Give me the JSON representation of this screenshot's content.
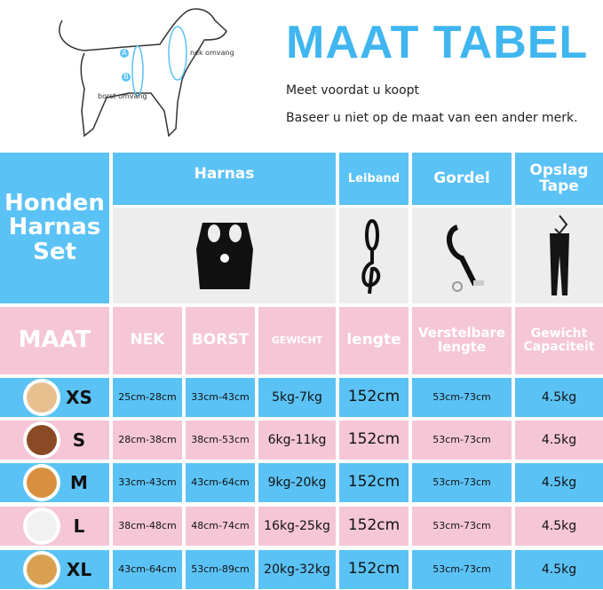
{
  "header": {
    "title": "MAAT TABEL",
    "line1": "Meet voordat u koopt",
    "line2": "Baseer u niet op de maat van een ander merk."
  },
  "diagram": {
    "a_marker": "A",
    "a_label": "nek omvang",
    "b_marker": "B",
    "b_label": "borst omvang"
  },
  "table": {
    "corner": "Honden Harnas Set",
    "products": [
      "Harnas",
      "Leiband",
      "Gordel",
      "Opslag Tape"
    ],
    "columns": [
      "MAAT",
      "NEK",
      "BORST",
      "GEWICHT",
      "lengte",
      "Verstelbare lengte",
      "Gewicht Capaciteit"
    ],
    "rows": [
      {
        "size": "XS",
        "nek": "25cm-28cm",
        "borst": "33cm-43cm",
        "gewicht": "5kg-7kg",
        "lengte": "152cm",
        "verstelbaar": "53cm-73cm",
        "capaciteit": "4.5kg",
        "dog_color": "#e8c090"
      },
      {
        "size": "S",
        "nek": "28cm-38cm",
        "borst": "38cm-53cm",
        "gewicht": "6kg-11kg",
        "lengte": "152cm",
        "verstelbaar": "53cm-73cm",
        "capaciteit": "4.5kg",
        "dog_color": "#8a4a26"
      },
      {
        "size": "M",
        "nek": "33cm-43cm",
        "borst": "43cm-64cm",
        "gewicht": "9kg-20kg",
        "lengte": "152cm",
        "verstelbaar": "53cm-73cm",
        "capaciteit": "4.5kg",
        "dog_color": "#d9903e"
      },
      {
        "size": "L",
        "nek": "38cm-48cm",
        "borst": "48cm-74cm",
        "gewicht": "16kg-25kg",
        "lengte": "152cm",
        "verstelbaar": "53cm-73cm",
        "capaciteit": "4.5kg",
        "dog_color": "#f1f1f1"
      },
      {
        "size": "XL",
        "nek": "43cm-64cm",
        "borst": "53cm-89cm",
        "gewicht": "20kg-32kg",
        "lengte": "152cm",
        "verstelbaar": "53cm-73cm",
        "capaciteit": "4.5kg",
        "dog_color": "#d8a050"
      }
    ]
  },
  "colors": {
    "blue": "#5bc2f5",
    "pink": "#f5c6d6",
    "title": "#3fb6ef"
  }
}
